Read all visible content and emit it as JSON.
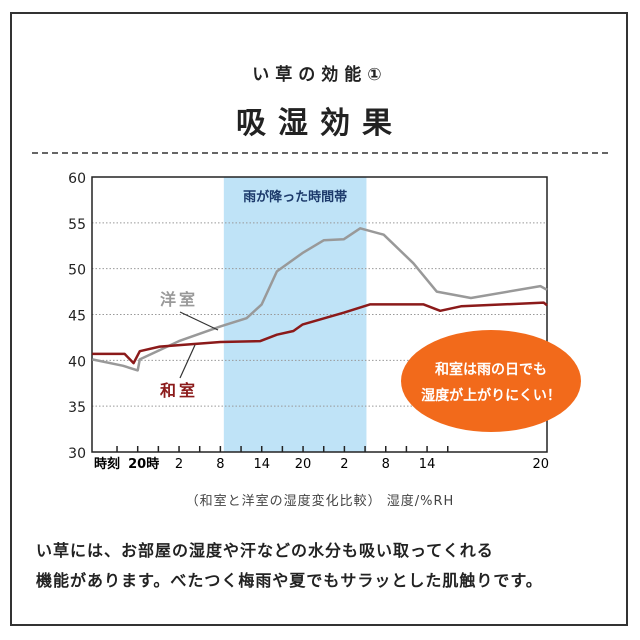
{
  "header": {
    "subtitle": "い草の効能①",
    "title": "吸湿効果"
  },
  "caption": "（和室と洋室の湿度変化比較） 湿度/%RH",
  "body_lines": [
    "い草には、お部屋の湿度や汗などの水分も吸い取ってくれる",
    "機能があります。べたつく梅雨や夏でもサラッとした肌触りです。"
  ],
  "chart_data": {
    "type": "line",
    "ylim": [
      30,
      60
    ],
    "yticks": [
      30,
      35,
      40,
      45,
      50,
      55,
      60
    ],
    "grid": "horizontal dotted",
    "x_axis_prefix": "時刻",
    "xtick_labels": [
      {
        "day": 0,
        "hour": 20,
        "label": "20時"
      },
      {
        "day": 1,
        "hour": 2,
        "label": "2"
      },
      {
        "day": 1,
        "hour": 8,
        "label": "8"
      },
      {
        "day": 1,
        "hour": 14,
        "label": "14"
      },
      {
        "day": 1,
        "hour": 20,
        "label": "20"
      },
      {
        "day": 2,
        "hour": 2,
        "label": "2"
      },
      {
        "day": 2,
        "hour": 8,
        "label": "8"
      },
      {
        "day": 2,
        "hour": 14,
        "label": "14"
      },
      {
        "day": 2,
        "hour": 20,
        "label": "20"
      }
    ],
    "shaded_region": {
      "label": "雨が降った時間帯",
      "start": {
        "day": 1,
        "hour": 8.5
      },
      "end": {
        "day": 2,
        "hour": 5.2
      },
      "color": "#bfe3f7"
    },
    "series": [
      {
        "name": "洋室",
        "color": "#999999",
        "points": [
          [
            0,
            13.4,
            40.1
          ],
          [
            0,
            17.9,
            39.4
          ],
          [
            0,
            20,
            38.9
          ],
          [
            0,
            20.3,
            40.1
          ],
          [
            1,
            2,
            42.1
          ],
          [
            1,
            8,
            43.7
          ],
          [
            1,
            11.8,
            44.6
          ],
          [
            1,
            14,
            46.1
          ],
          [
            1,
            16.2,
            49.7
          ],
          [
            1,
            19.9,
            51.7
          ],
          [
            1,
            23,
            53.1
          ],
          [
            2,
            1.9,
            53.2
          ],
          [
            2,
            4.3,
            54.4
          ],
          [
            2,
            7.7,
            53.7
          ],
          [
            2,
            12,
            50.6
          ],
          [
            2,
            15.4,
            47.5
          ],
          [
            2,
            17.7,
            46.8
          ],
          [
            2,
            19.8,
            48.1
          ],
          [
            2,
            20,
            47.7
          ]
        ]
      },
      {
        "name": "和室",
        "color": "#8b1a1a",
        "points": [
          [
            0,
            13.4,
            40.7
          ],
          [
            0,
            18.1,
            40.7
          ],
          [
            0,
            19.4,
            39.7
          ],
          [
            0,
            20.3,
            41.0
          ],
          [
            0,
            23.2,
            41.5
          ],
          [
            1,
            8,
            42.0
          ],
          [
            1,
            13.8,
            42.1
          ],
          [
            1,
            16.2,
            42.8
          ],
          [
            1,
            18.6,
            43.2
          ],
          [
            1,
            19.9,
            43.9
          ],
          [
            2,
            1.9,
            45.2
          ],
          [
            2,
            5.7,
            46.1
          ],
          [
            2,
            13.5,
            46.1
          ],
          [
            2,
            15.9,
            45.4
          ],
          [
            2,
            17.4,
            45.9
          ],
          [
            2,
            19.9,
            46.3
          ],
          [
            2,
            20,
            46.0
          ]
        ]
      }
    ],
    "annotation": {
      "lines": [
        "和室は雨の日でも",
        "湿度が上がりにくい！"
      ],
      "color": "#f26a1b"
    }
  }
}
